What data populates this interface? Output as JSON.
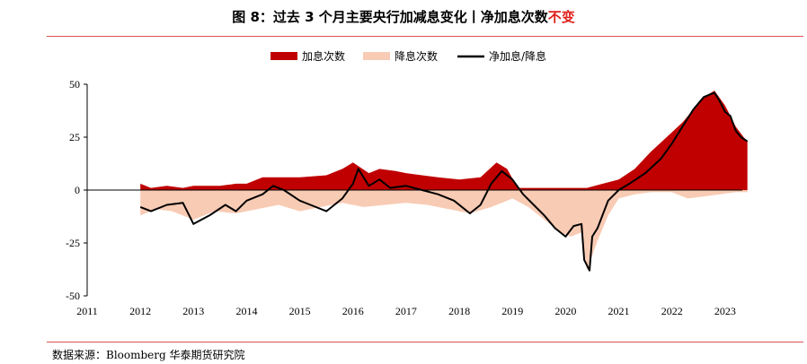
{
  "figure": {
    "title_main": "图 8：过去 3 个月主要央行加减息变化丨净加息次数",
    "title_highlight": "不变",
    "source": "数据来源：Bloomberg  华泰期货研究院"
  },
  "colors": {
    "hike": "#c00000",
    "cut": "#f8cbb4",
    "net": "#000000",
    "rule": "#d9534f"
  },
  "chart_data": {
    "type": "area",
    "title": "过去 3 个月主要央行加减息变化丨净加息次数不变",
    "xlabel": "",
    "ylabel": "",
    "x_ticks": [
      "2011",
      "2012",
      "2013",
      "2014",
      "2015",
      "2016",
      "2017",
      "2018",
      "2019",
      "2020",
      "2021",
      "2022",
      "2023"
    ],
    "y_ticks": [
      50,
      25,
      0,
      -25,
      -50
    ],
    "xlim": [
      2011.0,
      2024.0
    ],
    "ylim": [
      -50,
      50
    ],
    "legend": [
      "加息次数",
      "降息次数",
      "净加息/降息"
    ],
    "legend_position": "top-center",
    "series": [
      {
        "name": "加息次数",
        "kind": "area",
        "x": [
          2012.0,
          2012.2,
          2012.5,
          2012.8,
          2013.0,
          2013.5,
          2013.8,
          2014.0,
          2014.3,
          2014.6,
          2015.0,
          2015.5,
          2015.8,
          2016.0,
          2016.3,
          2016.5,
          2016.8,
          2017.0,
          2017.3,
          2017.6,
          2018.0,
          2018.4,
          2018.7,
          2018.9,
          2019.1,
          2019.4,
          2019.7,
          2020.0,
          2020.4,
          2020.7,
          2021.0,
          2021.3,
          2021.6,
          2021.9,
          2022.2,
          2022.4,
          2022.6,
          2022.8,
          2023.0,
          2023.1,
          2023.2,
          2023.35,
          2023.42
        ],
        "values": [
          3,
          1,
          2,
          1,
          2,
          2,
          3,
          3,
          6,
          6,
          6,
          7,
          10,
          13,
          8,
          10,
          9,
          8,
          7,
          6,
          5,
          6,
          13,
          10,
          1,
          1,
          1,
          1,
          1,
          3,
          5,
          10,
          18,
          25,
          32,
          38,
          44,
          47,
          40,
          35,
          30,
          25,
          23
        ]
      },
      {
        "name": "降息次数",
        "kind": "area",
        "x": [
          2012.0,
          2012.3,
          2012.6,
          2013.0,
          2013.4,
          2013.8,
          2014.2,
          2014.6,
          2015.0,
          2015.4,
          2015.8,
          2016.2,
          2016.6,
          2017.0,
          2017.4,
          2017.8,
          2018.2,
          2018.6,
          2018.8,
          2019.0,
          2019.3,
          2019.6,
          2019.9,
          2020.1,
          2020.3,
          2020.4,
          2020.6,
          2020.8,
          2021.0,
          2021.3,
          2021.6,
          2022.0,
          2022.3,
          2022.6,
          2022.9,
          2023.2,
          2023.42
        ],
        "values": [
          -12,
          -9,
          -10,
          -14,
          -10,
          -11,
          -9,
          -7,
          -10,
          -8,
          -6,
          -8,
          -7,
          -6,
          -7,
          -9,
          -11,
          -8,
          -6,
          -4,
          -8,
          -14,
          -20,
          -22,
          -20,
          -38,
          -24,
          -12,
          -4,
          -2,
          -1,
          -1,
          -4,
          -3,
          -2,
          -1,
          -1
        ]
      },
      {
        "name": "净加息/降息",
        "kind": "line",
        "x": [
          2012.0,
          2012.2,
          2012.5,
          2012.8,
          2013.0,
          2013.3,
          2013.6,
          2013.8,
          2014.0,
          2014.3,
          2014.5,
          2014.7,
          2015.0,
          2015.2,
          2015.5,
          2015.8,
          2016.0,
          2016.1,
          2016.3,
          2016.5,
          2016.7,
          2017.0,
          2017.3,
          2017.6,
          2017.9,
          2018.2,
          2018.4,
          2018.6,
          2018.8,
          2019.0,
          2019.2,
          2019.4,
          2019.6,
          2019.8,
          2020.0,
          2020.15,
          2020.3,
          2020.35,
          2020.45,
          2020.5,
          2020.6,
          2020.8,
          2021.0,
          2021.2,
          2021.5,
          2021.8,
          2022.0,
          2022.2,
          2022.4,
          2022.6,
          2022.8,
          2022.9,
          2023.0,
          2023.1,
          2023.2,
          2023.3,
          2023.42
        ],
        "values": [
          -8,
          -10,
          -7,
          -6,
          -16,
          -12,
          -7,
          -10,
          -5,
          -2,
          2,
          0,
          -5,
          -7,
          -10,
          -4,
          3,
          10,
          2,
          5,
          1,
          2,
          0,
          -2,
          -5,
          -11,
          -7,
          3,
          9,
          5,
          -2,
          -7,
          -12,
          -18,
          -22,
          -17,
          -16,
          -33,
          -38,
          -22,
          -18,
          -5,
          0,
          3,
          8,
          15,
          22,
          30,
          38,
          44,
          46,
          42,
          37,
          35,
          28,
          25,
          23
        ]
      }
    ]
  }
}
